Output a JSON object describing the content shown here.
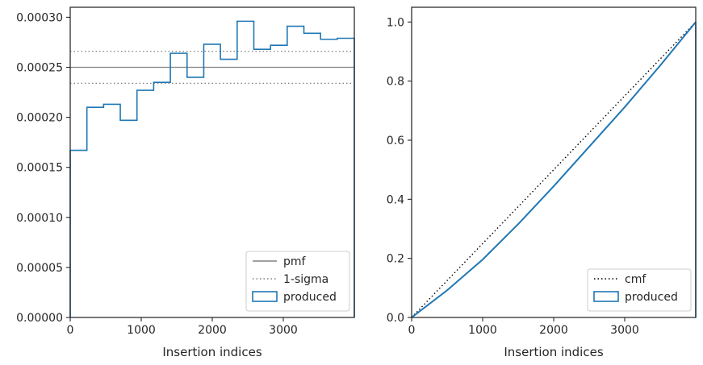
{
  "chart_data": [
    {
      "type": "histogram",
      "xlabel": "Insertion indices",
      "ylabel": "",
      "xlim": [
        0,
        4000
      ],
      "ylim": [
        0,
        0.00031
      ],
      "xticks": [
        "0",
        "1000",
        "2000",
        "3000"
      ],
      "yticks": [
        "0.00000",
        "0.00005",
        "0.00010",
        "0.00015",
        "0.00020",
        "0.00025",
        "0.00030"
      ],
      "bins": [
        0,
        235,
        470,
        705,
        940,
        1175,
        1410,
        1645,
        1880,
        2115,
        2350,
        2585,
        2820,
        3055,
        3290,
        3525,
        3760,
        4000
      ],
      "series": [
        {
          "name": "produced",
          "values": [
            0.000167,
            0.00021,
            0.000213,
            0.000197,
            0.000227,
            0.000235,
            0.000264,
            0.00024,
            0.000273,
            0.000258,
            0.000296,
            0.000268,
            0.000272,
            0.000291,
            0.000284,
            0.000278,
            0.000279
          ],
          "color": "#1f77b4"
        }
      ],
      "reference_lines": [
        {
          "name": "pmf",
          "y": 0.00025,
          "style": "solid",
          "color": "#808080"
        },
        {
          "name": "1-sigma",
          "y": 0.000266,
          "style": "dotted",
          "color": "#808080"
        },
        {
          "name": "1-sigma",
          "y": 0.000234,
          "style": "dotted",
          "color": "#808080"
        }
      ],
      "legend": {
        "position": "lower-right",
        "entries": [
          "pmf",
          "1-sigma",
          "produced"
        ]
      }
    },
    {
      "type": "line",
      "xlabel": "Insertion indices",
      "ylabel": "",
      "xlim": [
        0,
        4000
      ],
      "ylim": [
        0,
        1.05
      ],
      "xticks": [
        "0",
        "1000",
        "2000",
        "3000"
      ],
      "yticks": [
        "0.0",
        "0.2",
        "0.4",
        "0.6",
        "0.8",
        "1.0"
      ],
      "series": [
        {
          "name": "cmf",
          "style": "dotted",
          "color": "#000000",
          "x": [
            0,
            4000
          ],
          "y": [
            0,
            1.0
          ]
        },
        {
          "name": "produced",
          "style": "step",
          "color": "#1f77b4",
          "x": [
            0,
            500,
            1000,
            1500,
            2000,
            2500,
            3000,
            3500,
            4000
          ],
          "y": [
            0,
            0.092,
            0.196,
            0.316,
            0.444,
            0.578,
            0.712,
            0.853,
            1.0
          ]
        }
      ],
      "legend": {
        "position": "lower-right",
        "entries": [
          "cmf",
          "produced"
        ]
      }
    }
  ]
}
